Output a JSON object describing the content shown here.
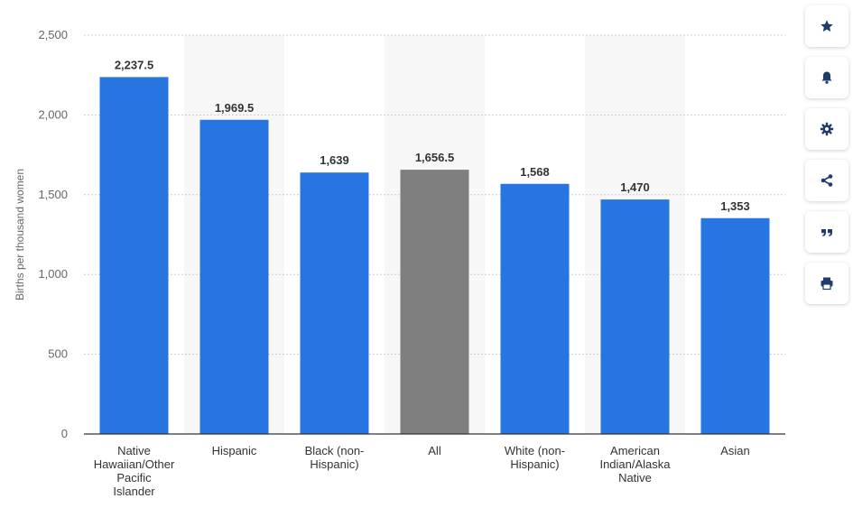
{
  "chart_data": {
    "type": "bar",
    "ylabel": "Births per thousand women",
    "xlabel": "",
    "ylim": [
      0,
      2500
    ],
    "yticks": [
      0,
      500,
      1000,
      1500,
      2000,
      2500
    ],
    "grid": true,
    "categories": [
      "Native Hawaiian/Other Pacific Islander",
      "Hispanic",
      "Black (non-Hispanic)",
      "All",
      "White (non-Hispanic)",
      "American Indian/Alaska Native",
      "Asian"
    ],
    "category_lines": [
      [
        "Native",
        "Hawaiian/Other",
        "Pacific",
        "Islander"
      ],
      [
        "Hispanic"
      ],
      [
        "Black (non-",
        "Hispanic)"
      ],
      [
        "All"
      ],
      [
        "White (non-",
        "Hispanic)"
      ],
      [
        "American",
        "Indian/Alaska",
        "Native"
      ],
      [
        "Asian"
      ]
    ],
    "values": [
      2237.5,
      1969.5,
      1639,
      1656.5,
      1568,
      1470,
      1353
    ],
    "value_labels": [
      "2,237.5",
      "1,969.5",
      "1,639",
      "1,656.5",
      "1,568",
      "1,470",
      "1,353"
    ],
    "tick_labels": [
      "0",
      "500",
      "1,000",
      "1,500",
      "2,000",
      "2,500"
    ],
    "colors": {
      "default": "#2775e0",
      "highlight": "#7f7f7f",
      "highlight_category": "All",
      "band": "#f7f7f7",
      "grid": "#cccccc",
      "axis": "#333333",
      "label": "#333333",
      "tick": "#666666"
    }
  },
  "toolbar": {
    "buttons": [
      {
        "name": "favorite-button",
        "icon": "star-icon"
      },
      {
        "name": "notification-button",
        "icon": "bell-icon"
      },
      {
        "name": "settings-button",
        "icon": "gear-icon"
      },
      {
        "name": "share-button",
        "icon": "share-icon"
      },
      {
        "name": "cite-button",
        "icon": "quote-icon"
      },
      {
        "name": "print-button",
        "icon": "printer-icon"
      }
    ]
  }
}
